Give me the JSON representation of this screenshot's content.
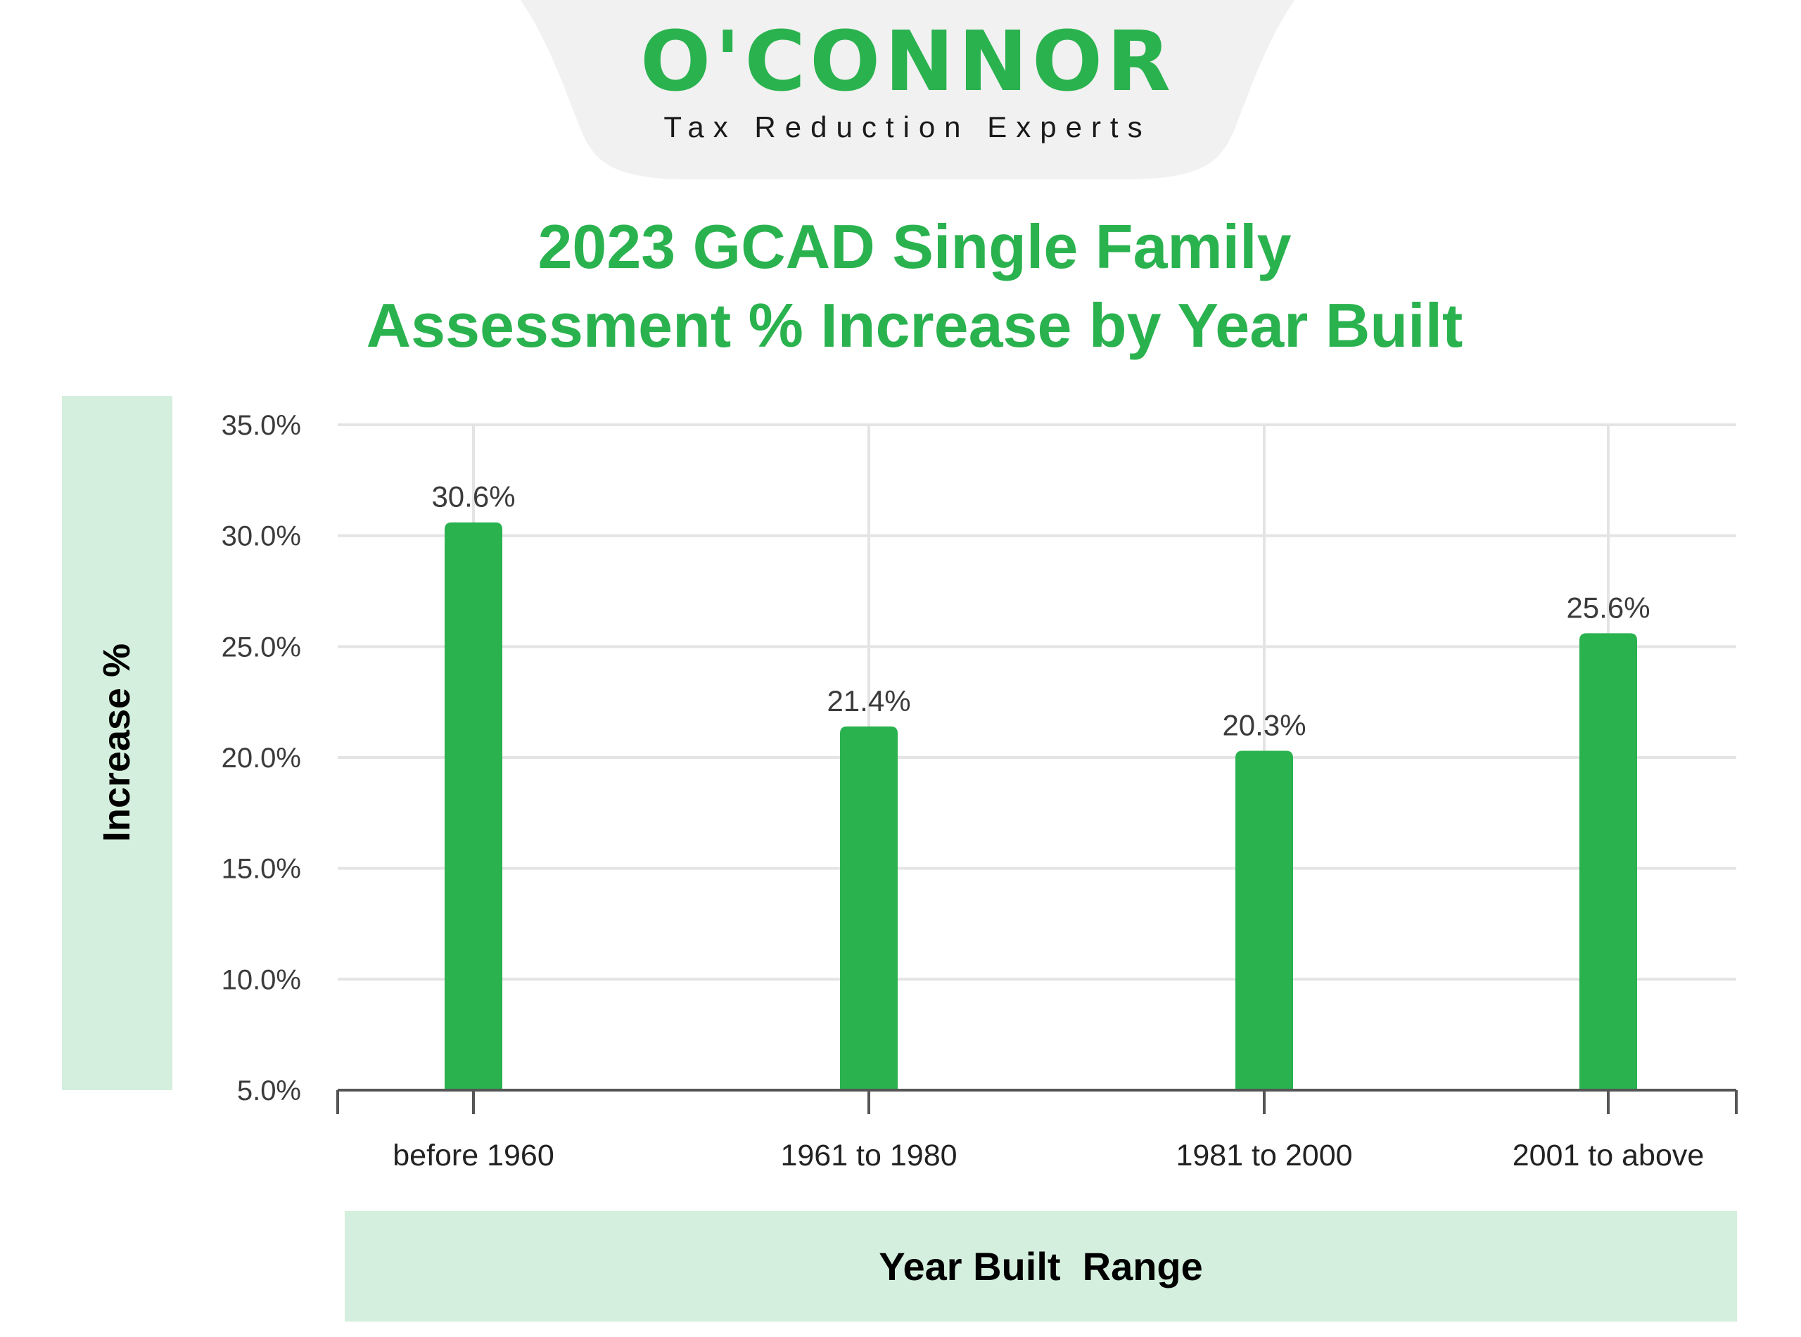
{
  "logo": {
    "wordmark": "O'CONNOR",
    "tagline": "Tax Reduction Experts"
  },
  "colors": {
    "brand_green": "#2ab24f",
    "bar_green": "#2ab24f",
    "label_box": "#d4efdd",
    "logo_tab": "#f1f1f1",
    "grid": "#e4e4e4"
  },
  "chart_data": {
    "type": "bar",
    "title_line1": "2023 GCAD Single Family",
    "title_line2": "Assessment % Increase by Year Built",
    "xlabel": "Year Built  Range",
    "ylabel": "Increase %",
    "categories": [
      "before 1960",
      "1961 to 1980",
      "1981 to 2000",
      "2001 to above"
    ],
    "values": [
      30.6,
      21.4,
      20.3,
      25.6
    ],
    "value_labels": [
      "30.6%",
      "21.4%",
      "20.3%",
      "25.6%"
    ],
    "ylim": [
      5,
      35
    ],
    "yticks": [
      5,
      10,
      15,
      20,
      25,
      30,
      35
    ],
    "ytick_labels": [
      "5.0%",
      "10.0%",
      "15.0%",
      "20.0%",
      "25.0%",
      "30.0%",
      "35.0%"
    ],
    "grid": true
  }
}
